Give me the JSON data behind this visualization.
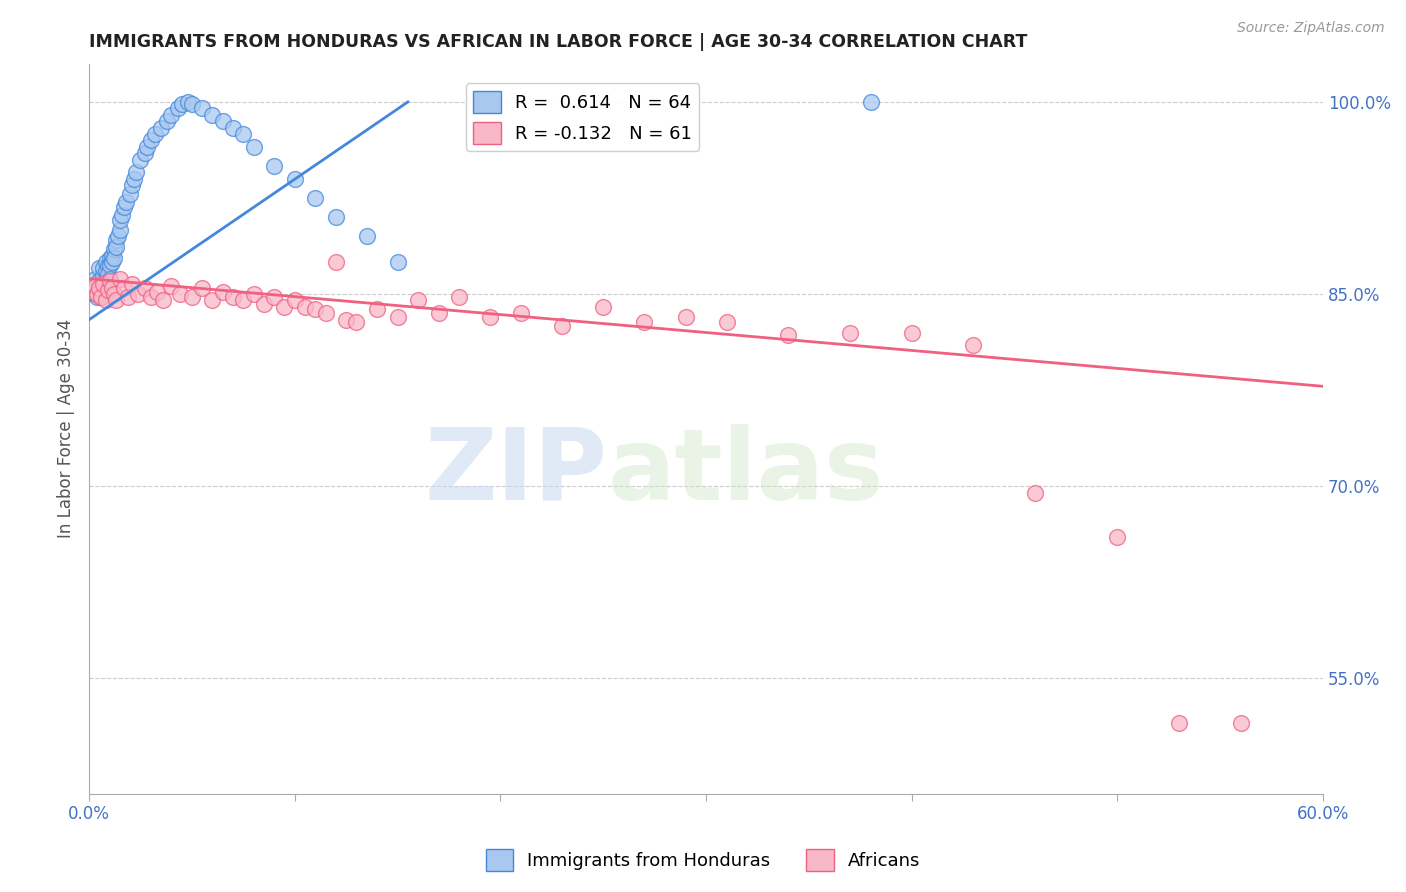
{
  "title": "IMMIGRANTS FROM HONDURAS VS AFRICAN IN LABOR FORCE | AGE 30-34 CORRELATION CHART",
  "source": "Source: ZipAtlas.com",
  "ylabel": "In Labor Force | Age 30-34",
  "x_min": 0.0,
  "x_max": 0.6,
  "y_min": 0.46,
  "y_max": 1.03,
  "y_ticks_right": [
    0.55,
    0.7,
    0.85,
    1.0
  ],
  "y_tick_labels_right": [
    "55.0%",
    "70.0%",
    "85.0%",
    "100.0%"
  ],
  "legend_blue_label": "Immigrants from Honduras",
  "legend_pink_label": "Africans",
  "R_blue": 0.614,
  "N_blue": 64,
  "R_pink": -0.132,
  "N_pink": 61,
  "blue_color": "#A8C8F0",
  "pink_color": "#F8B8C8",
  "blue_line_color": "#4488DD",
  "pink_line_color": "#F06080",
  "watermark_zip": "ZIP",
  "watermark_atlas": "atlas",
  "blue_scatter_x": [
    0.001,
    0.002,
    0.002,
    0.003,
    0.003,
    0.003,
    0.004,
    0.004,
    0.005,
    0.005,
    0.005,
    0.006,
    0.006,
    0.007,
    0.007,
    0.007,
    0.008,
    0.008,
    0.009,
    0.009,
    0.01,
    0.01,
    0.01,
    0.011,
    0.011,
    0.012,
    0.012,
    0.013,
    0.013,
    0.014,
    0.015,
    0.015,
    0.016,
    0.017,
    0.018,
    0.02,
    0.021,
    0.022,
    0.023,
    0.025,
    0.027,
    0.028,
    0.03,
    0.032,
    0.035,
    0.038,
    0.04,
    0.043,
    0.045,
    0.048,
    0.05,
    0.055,
    0.06,
    0.065,
    0.07,
    0.075,
    0.08,
    0.09,
    0.1,
    0.11,
    0.12,
    0.135,
    0.15,
    0.38
  ],
  "blue_scatter_y": [
    0.853,
    0.851,
    0.855,
    0.858,
    0.85,
    0.862,
    0.856,
    0.848,
    0.86,
    0.855,
    0.87,
    0.857,
    0.848,
    0.865,
    0.87,
    0.858,
    0.875,
    0.868,
    0.872,
    0.866,
    0.878,
    0.873,
    0.862,
    0.88,
    0.875,
    0.885,
    0.878,
    0.892,
    0.887,
    0.895,
    0.9,
    0.908,
    0.912,
    0.918,
    0.922,
    0.928,
    0.935,
    0.94,
    0.945,
    0.955,
    0.96,
    0.965,
    0.97,
    0.975,
    0.98,
    0.985,
    0.99,
    0.995,
    0.998,
    1.0,
    0.998,
    0.995,
    0.99,
    0.985,
    0.98,
    0.975,
    0.965,
    0.95,
    0.94,
    0.925,
    0.91,
    0.895,
    0.875,
    1.0
  ],
  "pink_scatter_x": [
    0.001,
    0.002,
    0.003,
    0.004,
    0.005,
    0.006,
    0.007,
    0.008,
    0.009,
    0.01,
    0.011,
    0.012,
    0.013,
    0.015,
    0.017,
    0.019,
    0.021,
    0.024,
    0.027,
    0.03,
    0.033,
    0.036,
    0.04,
    0.044,
    0.05,
    0.055,
    0.06,
    0.065,
    0.07,
    0.075,
    0.08,
    0.085,
    0.09,
    0.095,
    0.1,
    0.105,
    0.11,
    0.115,
    0.12,
    0.125,
    0.13,
    0.14,
    0.15,
    0.16,
    0.17,
    0.18,
    0.195,
    0.21,
    0.23,
    0.25,
    0.27,
    0.29,
    0.31,
    0.34,
    0.37,
    0.4,
    0.43,
    0.46,
    0.5,
    0.53,
    0.56
  ],
  "pink_scatter_y": [
    0.854,
    0.852,
    0.856,
    0.85,
    0.855,
    0.848,
    0.858,
    0.845,
    0.853,
    0.86,
    0.855,
    0.85,
    0.845,
    0.862,
    0.855,
    0.848,
    0.858,
    0.85,
    0.855,
    0.848,
    0.852,
    0.845,
    0.856,
    0.85,
    0.848,
    0.855,
    0.845,
    0.852,
    0.848,
    0.845,
    0.85,
    0.842,
    0.848,
    0.84,
    0.845,
    0.84,
    0.838,
    0.835,
    0.875,
    0.83,
    0.828,
    0.838,
    0.832,
    0.845,
    0.835,
    0.848,
    0.832,
    0.835,
    0.825,
    0.84,
    0.828,
    0.832,
    0.828,
    0.818,
    0.82,
    0.82,
    0.81,
    0.695,
    0.66,
    0.515,
    0.515
  ],
  "blue_trend_x0": 0.0,
  "blue_trend_y0": 0.83,
  "blue_trend_x1": 0.155,
  "blue_trend_y1": 1.0,
  "pink_trend_x0": 0.0,
  "pink_trend_y0": 0.862,
  "pink_trend_x1": 0.6,
  "pink_trend_y1": 0.778
}
